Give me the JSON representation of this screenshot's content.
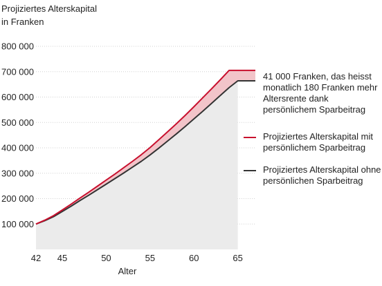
{
  "chart_data": {
    "type": "area",
    "ylabel_lines": [
      "Projiziertes Alterskapital",
      "in Franken"
    ],
    "xlabel": "Alter",
    "x_ticks": [
      42,
      45,
      50,
      55,
      60,
      65
    ],
    "y_ticks": [
      100000,
      200000,
      300000,
      400000,
      500000,
      600000,
      700000,
      800000
    ],
    "y_tick_labels": [
      "100 000",
      "200 000",
      "300 000",
      "400 000",
      "500 000",
      "600 000",
      "700 000",
      "800 000"
    ],
    "xlim": [
      42,
      67
    ],
    "ylim": [
      0,
      820000
    ],
    "grid": true,
    "series": [
      {
        "name": "Projiziertes Alterskapital mit persönlichem Sparbeitrag",
        "color": "#c8102e",
        "x": [
          42,
          43,
          44,
          45,
          46,
          47,
          48,
          49,
          50,
          51,
          52,
          53,
          54,
          55,
          56,
          57,
          58,
          59,
          60,
          61,
          62,
          63,
          64,
          65,
          67
        ],
        "y": [
          100000,
          115000,
          133000,
          155000,
          178000,
          202000,
          225000,
          249000,
          273000,
          297000,
          322000,
          347000,
          373000,
          401000,
          432000,
          463000,
          495000,
          528000,
          562000,
          597000,
          632000,
          668000,
          705000,
          705000,
          705000
        ]
      },
      {
        "name": "Projiziertes Alterskapital ohne persönlichen Sparbeitrag",
        "color": "#333333",
        "x": [
          42,
          43,
          44,
          45,
          46,
          47,
          48,
          49,
          50,
          51,
          52,
          53,
          54,
          55,
          56,
          57,
          58,
          59,
          60,
          61,
          62,
          63,
          64,
          65,
          67
        ],
        "y": [
          100000,
          113000,
          129000,
          149000,
          170000,
          192000,
          213000,
          235000,
          257000,
          279000,
          301000,
          324000,
          347000,
          372000,
          399000,
          427000,
          455000,
          484000,
          514000,
          544000,
          575000,
          606000,
          637000,
          664000,
          664000
        ]
      }
    ],
    "annotation": "41 000 Franken, das heisst monatlich 180 Franken mehr Altersrente dank persönlichem Sparbeitrag",
    "colors": {
      "difference_fill": "#f2c4c9",
      "area_fill": "#ebebeb",
      "grid": "#d0d0d0"
    }
  }
}
